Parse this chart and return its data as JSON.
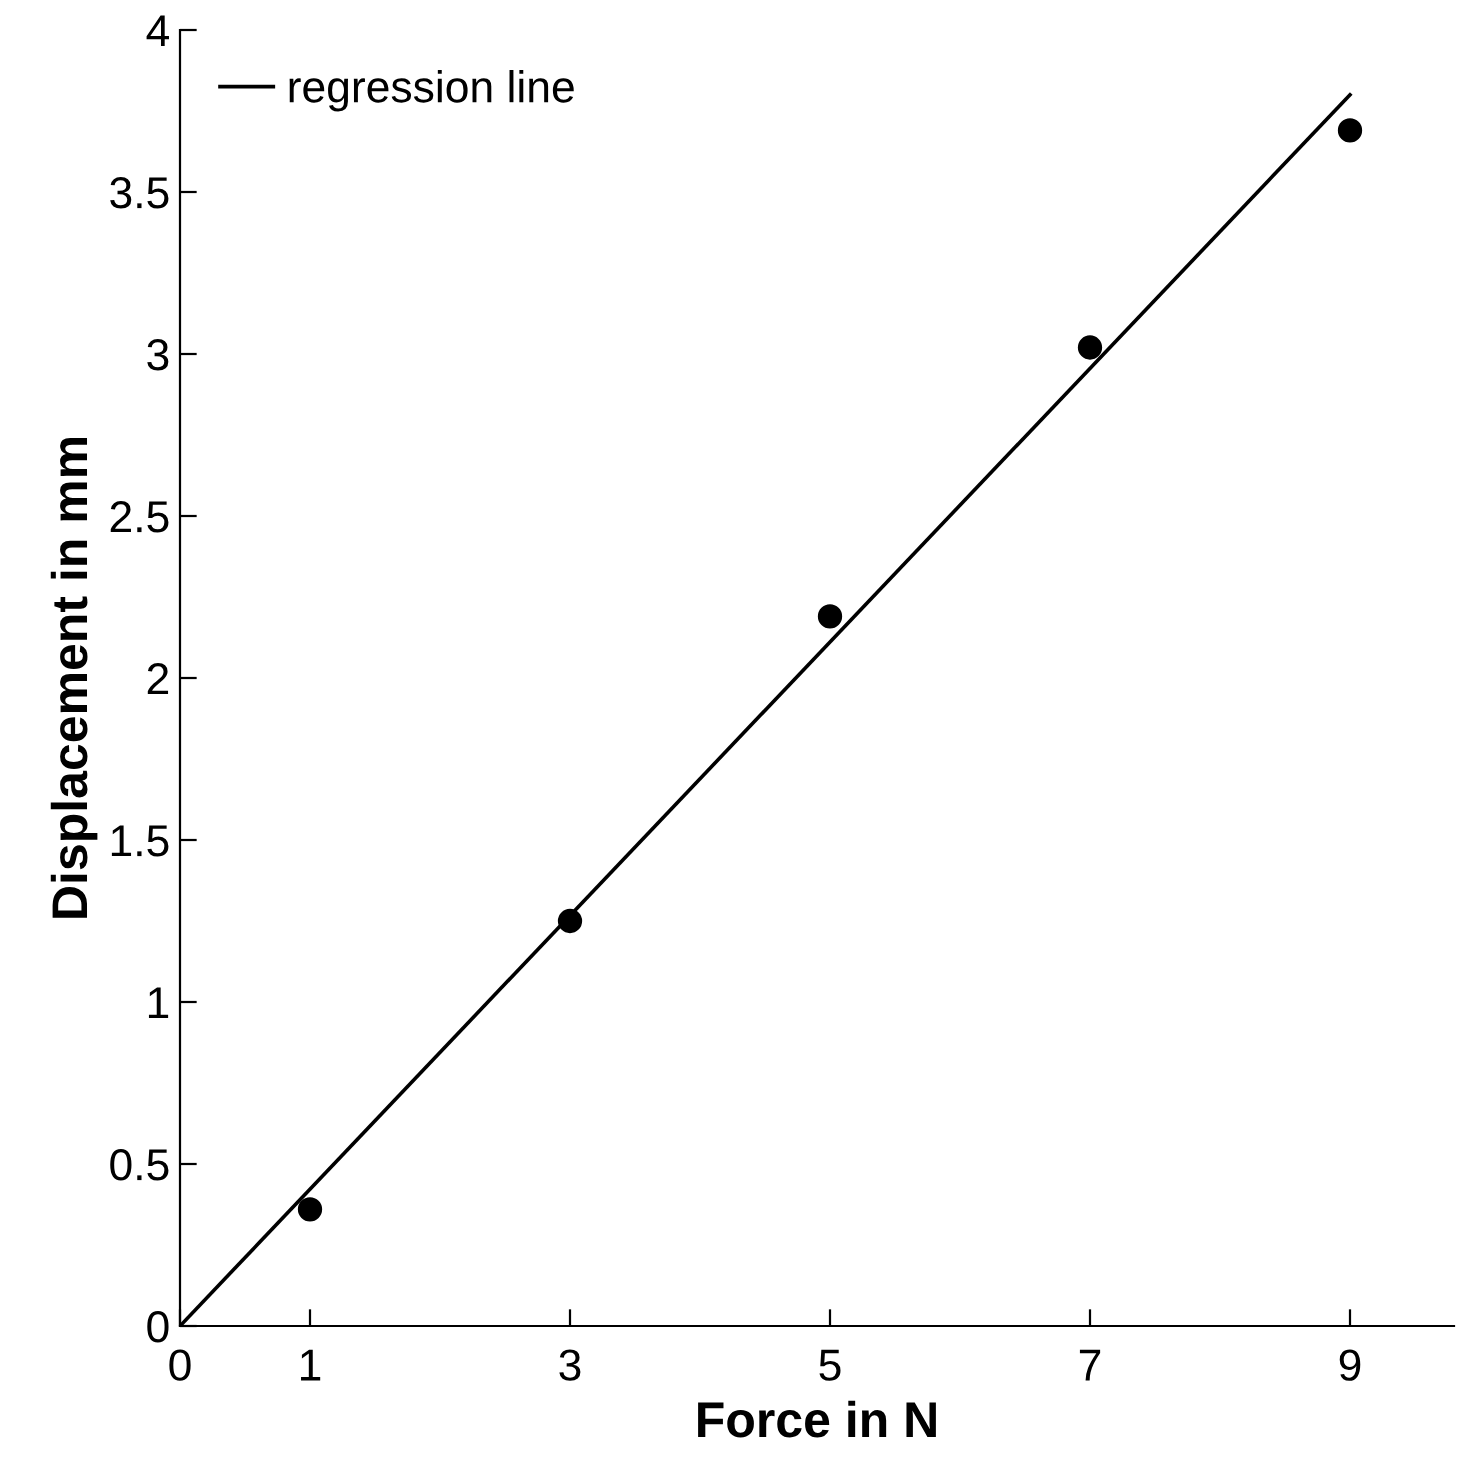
{
  "chart_data": {
    "type": "scatter",
    "xlabel": "Force in N",
    "ylabel": "Displacement in mm",
    "series": [
      {
        "color": "#000000",
        "x": [
          1,
          3,
          5,
          7,
          9
        ],
        "values": [
          0.36,
          1.25,
          2.19,
          3.02,
          3.69
        ],
        "marker": "circle"
      },
      {
        "type": "line",
        "name": "regression line",
        "color": "#000000",
        "x": [
          0,
          9
        ],
        "values": [
          0,
          3.8
        ],
        "marker": "none",
        "line_style": "solid"
      }
    ],
    "xlim": [
      0,
      9.8
    ],
    "ylim": [
      0,
      4
    ],
    "xticks": [
      0,
      1,
      3,
      5,
      7,
      9
    ],
    "yticks": [
      0,
      0.5,
      1,
      1.5,
      2,
      2.5,
      3,
      3.5,
      4
    ],
    "grid": false,
    "legend": "top left"
  }
}
